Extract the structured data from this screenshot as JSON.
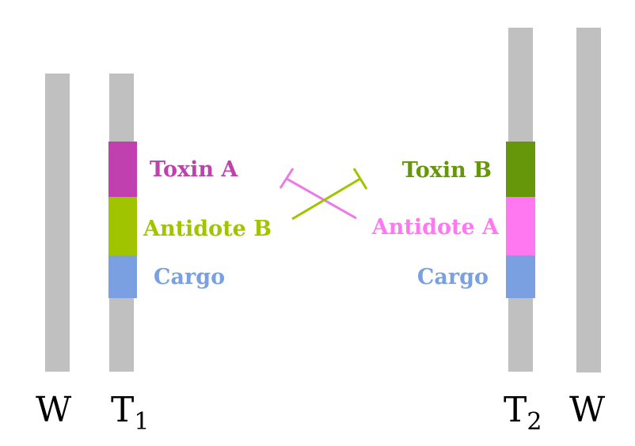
{
  "colors": {
    "chromosome": "#c0c0c0",
    "toxin_a": "#c040b0",
    "antidote_b": "#a0c400",
    "cargo": "#7aa0e2",
    "toxin_b": "#66960a",
    "antidote_a": "#ff78f2"
  },
  "labels": {
    "left_w": "W",
    "t1_main": "T",
    "t1_sub": "1",
    "t2_main": "T",
    "t2_sub": "2",
    "right_w": "W"
  },
  "segments": {
    "toxin_a": "Toxin A",
    "antidote_b": "Antidote B",
    "cargo_left": "Cargo",
    "toxin_b": "Toxin B",
    "antidote_a": "Antidote A",
    "cargo_right": "Cargo"
  }
}
